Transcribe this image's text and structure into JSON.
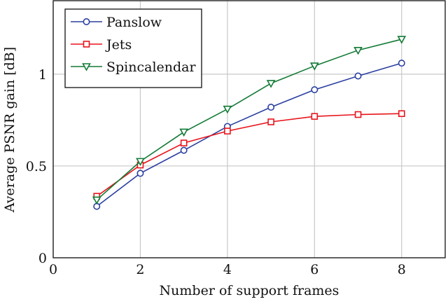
{
  "chart_data": {
    "type": "line",
    "title": "",
    "xlabel": "Number of support frames",
    "ylabel": "Average PSNR gain [dB]",
    "xlim": [
      0,
      9
    ],
    "ylim": [
      0,
      1.4
    ],
    "xticks": [
      0,
      2,
      4,
      6,
      8
    ],
    "yticks": [
      0,
      0.5,
      1
    ],
    "xtick_labels": [
      "0",
      "2",
      "4",
      "6",
      "8"
    ],
    "ytick_labels": [
      "0",
      "0.5",
      "1"
    ],
    "grid": true,
    "legend_position": "top-left",
    "x": [
      1,
      2,
      3,
      4,
      5,
      6,
      7,
      8
    ],
    "series": [
      {
        "name": "Panslow",
        "color": "#2b3fa0",
        "marker": "circle",
        "values": [
          0.28,
          0.46,
          0.585,
          0.715,
          0.82,
          0.915,
          0.99,
          1.06
        ]
      },
      {
        "name": "Jets",
        "color": "#e8141c",
        "marker": "square",
        "values": [
          0.335,
          0.505,
          0.625,
          0.69,
          0.74,
          0.77,
          0.78,
          0.785
        ]
      },
      {
        "name": "Spincalendar",
        "color": "#137a36",
        "marker": "triangle-down",
        "values": [
          0.315,
          0.525,
          0.685,
          0.81,
          0.95,
          1.045,
          1.13,
          1.19
        ]
      }
    ]
  }
}
